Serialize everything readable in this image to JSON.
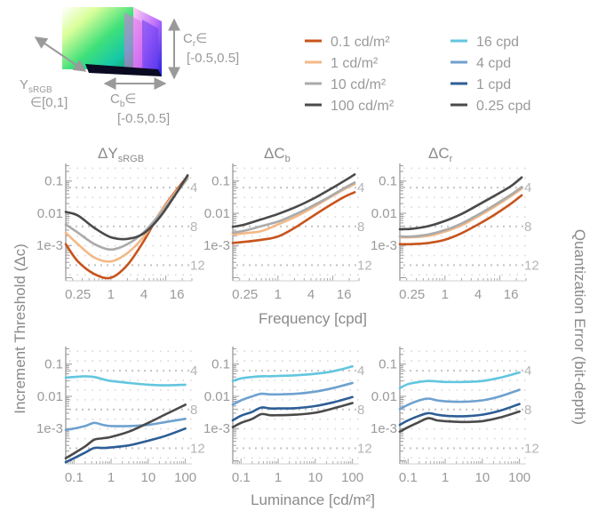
{
  "cube": {
    "y_label": "Y",
    "y_sub": "sRGB",
    "y_range": "∈[0,1]",
    "cb_label": "C",
    "cb_sub": "b",
    "cb_range_sym": "∈",
    "cb_range": "[-0.5,0.5]",
    "cr_label": "C",
    "cr_sub": "r",
    "cr_range_sym": "∈",
    "cr_range": "[-0.5,0.5]"
  },
  "legend": {
    "luminance": [
      {
        "label": "0.1 cd/m²",
        "color": "#c8541c"
      },
      {
        "label": "1 cd/m²",
        "color": "#f3b987"
      },
      {
        "label": "10 cd/m²",
        "color": "#aaaaaa"
      },
      {
        "label": "100 cd/m²",
        "color": "#4a4a4a"
      }
    ],
    "frequency": [
      {
        "label": "16 cpd",
        "color": "#62c6df"
      },
      {
        "label": "4 cpd",
        "color": "#6fa1cf"
      },
      {
        "label": "1 cpd",
        "color": "#2d5e96"
      },
      {
        "label": "0.25 cpd",
        "color": "#4a4a4a"
      }
    ]
  },
  "labels": {
    "y_axis": "Increment Threshold (Δc)",
    "y2_axis": "Quantization Error (bit-depth)",
    "x_top": "Frequency [cpd]",
    "x_bottom": "Luminance [cd/m²]"
  },
  "chart_data": [
    {
      "type": "line",
      "title": "ΔY",
      "title_sub": "sRGB",
      "xscale": "log",
      "yscale": "log",
      "xlabel": "Frequency [cpd]",
      "ylabel": "Increment Threshold (Δc)",
      "xlim": [
        0.15,
        30
      ],
      "ylim": [
        8e-05,
        0.35
      ],
      "xticks": [
        0.25,
        1,
        4,
        16
      ],
      "xticklabels": [
        "0.25",
        "1",
        "4",
        "16"
      ],
      "yticks": [
        0.1,
        0.01,
        0.001
      ],
      "yticklabels": [
        "0.1",
        "0.01",
        "1e-3"
      ],
      "y2ticklabels": [
        "4",
        "8",
        "12"
      ],
      "series": [
        {
          "name": "0.1 cd/m²",
          "color": "#c8541c",
          "x": [
            0.15,
            0.25,
            0.5,
            1,
            2,
            4,
            8,
            16,
            25
          ],
          "y": [
            0.0011,
            0.00032,
            0.00013,
            0.0001,
            0.00025,
            0.0014,
            0.011,
            0.055,
            0.14
          ]
        },
        {
          "name": "1 cd/m²",
          "color": "#f3b987",
          "x": [
            0.15,
            0.25,
            0.5,
            1,
            2,
            4,
            8,
            16,
            25
          ],
          "y": [
            0.0025,
            0.0011,
            0.00042,
            0.00032,
            0.00058,
            0.0019,
            0.011,
            0.05,
            0.13
          ]
        },
        {
          "name": "10 cd/m²",
          "color": "#aaaaaa",
          "x": [
            0.15,
            0.25,
            0.5,
            1,
            2,
            4,
            8,
            16,
            25
          ],
          "y": [
            0.0045,
            0.0025,
            0.0011,
            0.00075,
            0.0011,
            0.0026,
            0.01,
            0.045,
            0.12
          ]
        },
        {
          "name": "100 cd/m²",
          "color": "#4a4a4a",
          "x": [
            0.15,
            0.25,
            0.5,
            1,
            2,
            4,
            8,
            16,
            25
          ],
          "y": [
            0.011,
            0.0085,
            0.0035,
            0.0018,
            0.0016,
            0.0024,
            0.008,
            0.045,
            0.15
          ]
        }
      ]
    },
    {
      "type": "line",
      "title": "ΔC",
      "title_sub": "b",
      "xscale": "log",
      "yscale": "log",
      "xlabel": "Frequency [cpd]",
      "ylabel": "Increment Threshold (Δc)",
      "xlim": [
        0.15,
        30
      ],
      "ylim": [
        8e-05,
        0.35
      ],
      "xticks": [
        0.25,
        1,
        4,
        16
      ],
      "xticklabels": [
        "0.25",
        "1",
        "4",
        "16"
      ],
      "yticks": [
        0.1,
        0.01,
        0.001
      ],
      "yticklabels": [
        "0.1",
        "0.01",
        "1e-3"
      ],
      "y2ticklabels": [
        "4",
        "8",
        "12"
      ],
      "series": [
        {
          "name": "0.1 cd/m²",
          "color": "#c8541c",
          "x": [
            0.15,
            0.25,
            0.5,
            1,
            2,
            4,
            8,
            16,
            25
          ],
          "y": [
            0.0012,
            0.0013,
            0.0015,
            0.0019,
            0.0035,
            0.0075,
            0.016,
            0.032,
            0.045
          ]
        },
        {
          "name": "1 cd/m²",
          "color": "#f3b987",
          "x": [
            0.15,
            0.25,
            0.5,
            1,
            2,
            4,
            8,
            16,
            25
          ],
          "y": [
            0.0022,
            0.0024,
            0.0028,
            0.0045,
            0.0075,
            0.014,
            0.028,
            0.055,
            0.08
          ]
        },
        {
          "name": "10 cd/m²",
          "color": "#aaaaaa",
          "x": [
            0.15,
            0.25,
            0.5,
            1,
            2,
            4,
            8,
            16,
            25
          ],
          "y": [
            0.0025,
            0.0029,
            0.004,
            0.0055,
            0.009,
            0.016,
            0.03,
            0.06,
            0.09
          ]
        },
        {
          "name": "100 cd/m²",
          "color": "#4a4a4a",
          "x": [
            0.15,
            0.25,
            0.5,
            1,
            2,
            4,
            8,
            16,
            25
          ],
          "y": [
            0.0038,
            0.0045,
            0.0065,
            0.0095,
            0.015,
            0.026,
            0.05,
            0.1,
            0.16
          ]
        }
      ]
    },
    {
      "type": "line",
      "title": "ΔC",
      "title_sub": "r",
      "xscale": "log",
      "yscale": "log",
      "xlabel": "Frequency [cpd]",
      "ylabel": "Increment Threshold (Δc)",
      "xlim": [
        0.15,
        30
      ],
      "ylim": [
        8e-05,
        0.35
      ],
      "xticks": [
        0.25,
        1,
        4,
        16
      ],
      "xticklabels": [
        "0.25",
        "1",
        "4",
        "16"
      ],
      "yticks": [
        0.1,
        0.01,
        0.001
      ],
      "yticklabels": [
        "0.1",
        "0.01",
        "1e-3"
      ],
      "y2ticklabels": [
        "4",
        "8",
        "12"
      ],
      "series": [
        {
          "name": "0.1 cd/m²",
          "color": "#c8541c",
          "x": [
            0.15,
            0.25,
            0.5,
            1,
            2,
            4,
            8,
            16,
            25
          ],
          "y": [
            0.0011,
            0.0011,
            0.0012,
            0.0015,
            0.0024,
            0.0045,
            0.009,
            0.02,
            0.036
          ]
        },
        {
          "name": "1 cd/m²",
          "color": "#f3b987",
          "x": [
            0.15,
            0.25,
            0.5,
            1,
            2,
            4,
            8,
            16,
            25
          ],
          "y": [
            0.0018,
            0.0018,
            0.002,
            0.0027,
            0.0042,
            0.008,
            0.016,
            0.034,
            0.058
          ]
        },
        {
          "name": "10 cd/m²",
          "color": "#aaaaaa",
          "x": [
            0.15,
            0.25,
            0.5,
            1,
            2,
            4,
            8,
            16,
            25
          ],
          "y": [
            0.0019,
            0.0019,
            0.0022,
            0.003,
            0.0048,
            0.009,
            0.018,
            0.038,
            0.065
          ]
        },
        {
          "name": "100 cd/m²",
          "color": "#4a4a4a",
          "x": [
            0.15,
            0.25,
            0.5,
            1,
            2,
            4,
            8,
            16,
            25
          ],
          "y": [
            0.0032,
            0.0033,
            0.004,
            0.0058,
            0.0095,
            0.018,
            0.035,
            0.07,
            0.13
          ]
        }
      ]
    },
    {
      "type": "line",
      "xscale": "log",
      "yscale": "log",
      "xlabel": "Luminance [cd/m²]",
      "ylabel": "Increment Threshold (Δc)",
      "xlim": [
        0.06,
        150
      ],
      "ylim": [
        8e-05,
        0.35
      ],
      "xticks": [
        0.1,
        1,
        10,
        100
      ],
      "xticklabels": [
        "0.1",
        "1",
        "10",
        "100"
      ],
      "yticks": [
        0.1,
        0.01,
        0.001
      ],
      "yticklabels": [
        "0.1",
        "0.01",
        "1e-3"
      ],
      "y2ticklabels": [
        "4",
        "8",
        "12"
      ],
      "series": [
        {
          "name": "16 cpd",
          "color": "#62c6df",
          "x": [
            0.06,
            0.1,
            0.2,
            0.35,
            0.6,
            1,
            3,
            10,
            30,
            100
          ],
          "y": [
            0.038,
            0.04,
            0.042,
            0.04,
            0.034,
            0.03,
            0.026,
            0.023,
            0.022,
            0.023
          ]
        },
        {
          "name": "4 cpd",
          "color": "#6fa1cf",
          "x": [
            0.06,
            0.1,
            0.2,
            0.35,
            0.6,
            1,
            3,
            10,
            30,
            100
          ],
          "y": [
            0.0009,
            0.001,
            0.0012,
            0.0015,
            0.0013,
            0.0012,
            0.0012,
            0.0013,
            0.0016,
            0.002
          ]
        },
        {
          "name": "1 cpd",
          "color": "#2d5e96",
          "x": [
            0.06,
            0.1,
            0.2,
            0.35,
            0.6,
            1,
            3,
            10,
            30,
            100
          ],
          "y": [
            9e-05,
            0.00012,
            0.00018,
            0.00025,
            0.00025,
            0.00026,
            0.0003,
            0.00042,
            0.0006,
            0.001
          ]
        },
        {
          "name": "0.25 cpd",
          "color": "#4a4a4a",
          "x": [
            0.06,
            0.1,
            0.2,
            0.35,
            0.6,
            1,
            3,
            10,
            30,
            100
          ],
          "y": [
            0.00012,
            0.00017,
            0.00028,
            0.00045,
            0.0005,
            0.00055,
            0.0008,
            0.0015,
            0.0028,
            0.0055
          ]
        }
      ]
    },
    {
      "type": "line",
      "xscale": "log",
      "yscale": "log",
      "xlabel": "Luminance [cd/m²]",
      "ylabel": "Increment Threshold (Δc)",
      "xlim": [
        0.06,
        150
      ],
      "ylim": [
        8e-05,
        0.35
      ],
      "xticks": [
        0.1,
        1,
        10,
        100
      ],
      "xticklabels": [
        "0.1",
        "1",
        "10",
        "100"
      ],
      "yticks": [
        0.1,
        0.01,
        0.001
      ],
      "yticklabels": [
        "0.1",
        "0.01",
        "1e-3"
      ],
      "y2ticklabels": [
        "4",
        "8",
        "12"
      ],
      "series": [
        {
          "name": "16 cpd",
          "color": "#62c6df",
          "x": [
            0.06,
            0.1,
            0.2,
            0.35,
            0.6,
            1,
            3,
            10,
            30,
            100
          ],
          "y": [
            0.03,
            0.036,
            0.04,
            0.042,
            0.042,
            0.043,
            0.045,
            0.05,
            0.06,
            0.085
          ]
        },
        {
          "name": "4 cpd",
          "color": "#6fa1cf",
          "x": [
            0.06,
            0.1,
            0.2,
            0.35,
            0.6,
            1,
            3,
            10,
            30,
            100
          ],
          "y": [
            0.0055,
            0.0075,
            0.01,
            0.012,
            0.0115,
            0.0115,
            0.012,
            0.014,
            0.018,
            0.026
          ]
        },
        {
          "name": "1 cpd",
          "color": "#2d5e96",
          "x": [
            0.06,
            0.1,
            0.2,
            0.35,
            0.6,
            1,
            3,
            10,
            30,
            100
          ],
          "y": [
            0.0018,
            0.0025,
            0.0033,
            0.0045,
            0.0042,
            0.0042,
            0.0043,
            0.005,
            0.0065,
            0.0095
          ]
        },
        {
          "name": "0.25 cpd",
          "color": "#4a4a4a",
          "x": [
            0.06,
            0.1,
            0.2,
            0.35,
            0.6,
            1,
            3,
            10,
            30,
            100
          ],
          "y": [
            0.0011,
            0.0015,
            0.002,
            0.0028,
            0.0026,
            0.0026,
            0.0027,
            0.0031,
            0.0042,
            0.0062
          ]
        }
      ]
    },
    {
      "type": "line",
      "xscale": "log",
      "yscale": "log",
      "xlabel": "Luminance [cd/m²]",
      "ylabel": "Increment Threshold (Δc)",
      "xlim": [
        0.06,
        150
      ],
      "ylim": [
        8e-05,
        0.35
      ],
      "xticks": [
        0.1,
        1,
        10,
        100
      ],
      "xticklabels": [
        "0.1",
        "1",
        "10",
        "100"
      ],
      "yticks": [
        0.1,
        0.01,
        0.001
      ],
      "yticklabels": [
        "0.1",
        "0.01",
        "1e-3"
      ],
      "y2ticklabels": [
        "4",
        "8",
        "12"
      ],
      "series": [
        {
          "name": "16 cpd",
          "color": "#62c6df",
          "x": [
            0.06,
            0.1,
            0.2,
            0.35,
            0.6,
            1,
            3,
            10,
            30,
            100
          ],
          "y": [
            0.018,
            0.024,
            0.028,
            0.03,
            0.029,
            0.028,
            0.028,
            0.03,
            0.038,
            0.055
          ]
        },
        {
          "name": "4 cpd",
          "color": "#6fa1cf",
          "x": [
            0.06,
            0.1,
            0.2,
            0.35,
            0.6,
            1,
            3,
            10,
            30,
            100
          ],
          "y": [
            0.004,
            0.0055,
            0.0075,
            0.0085,
            0.0075,
            0.007,
            0.0068,
            0.0075,
            0.01,
            0.016
          ]
        },
        {
          "name": "1 cpd",
          "color": "#2d5e96",
          "x": [
            0.06,
            0.1,
            0.2,
            0.35,
            0.6,
            1,
            3,
            10,
            30,
            100
          ],
          "y": [
            0.0013,
            0.0018,
            0.0025,
            0.003,
            0.0027,
            0.0025,
            0.0024,
            0.0027,
            0.0036,
            0.0058
          ]
        },
        {
          "name": "0.25 cpd",
          "color": "#4a4a4a",
          "x": [
            0.06,
            0.1,
            0.2,
            0.35,
            0.6,
            1,
            3,
            10,
            30,
            100
          ],
          "y": [
            0.0008,
            0.0011,
            0.0016,
            0.0021,
            0.0018,
            0.0017,
            0.0016,
            0.0017,
            0.0022,
            0.0034
          ]
        }
      ]
    }
  ]
}
